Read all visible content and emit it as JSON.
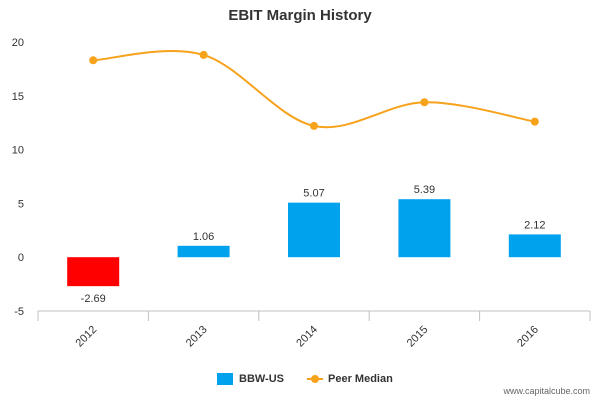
{
  "chart_data": {
    "type": "bar",
    "title": "EBIT Margin History",
    "categories": [
      "2012",
      "2013",
      "2014",
      "2015",
      "2016"
    ],
    "series": [
      {
        "name": "BBW-US",
        "kind": "bar",
        "values": [
          -2.69,
          1.06,
          5.07,
          5.39,
          2.12
        ],
        "value_labels": [
          "-2.69",
          "1.06",
          "5.07",
          "5.39",
          "2.12"
        ]
      },
      {
        "name": "Peer Median",
        "kind": "line",
        "values": [
          18.3,
          18.8,
          12.2,
          14.4,
          12.6
        ]
      }
    ],
    "ylim": [
      -5,
      20
    ],
    "yticks": [
      "-5",
      "0",
      "5",
      "10",
      "15",
      "20"
    ],
    "grid": false,
    "legend": "bottom-center"
  },
  "colors": {
    "bar_positive": "#00a2ed",
    "bar_negative": "#ff0000",
    "peer_line": "#f7a21b",
    "axis": "#c0c0c0",
    "text": "#333333"
  },
  "watermark": "www.capitalcube.com"
}
